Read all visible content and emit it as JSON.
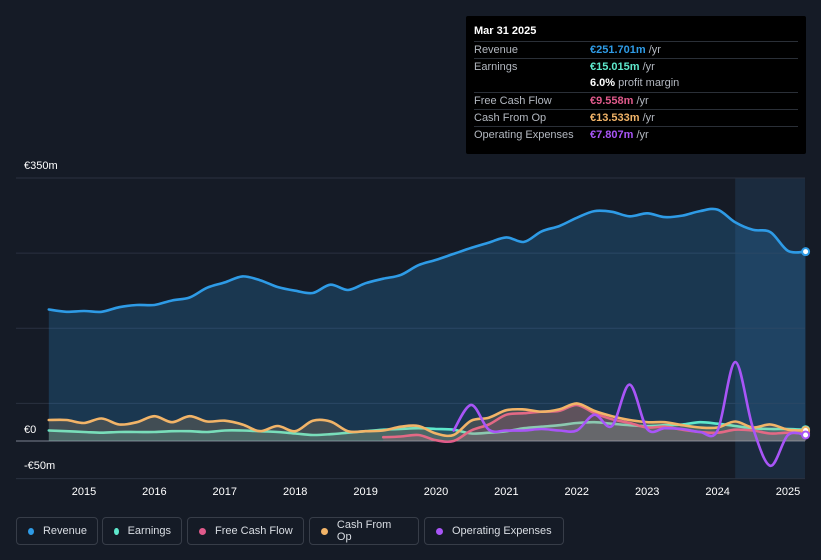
{
  "tooltip": {
    "date": "Mar 31 2025",
    "rows": [
      {
        "label": "Revenue",
        "value": "€251.701m",
        "unit": "/yr",
        "color": "#2e9be6"
      },
      {
        "label": "Earnings",
        "value": "€15.015m",
        "unit": "/yr",
        "color": "#5ee8cc"
      },
      {
        "label": "",
        "value": "6.0%",
        "unit": "profit margin",
        "color": "#ffffff"
      },
      {
        "label": "Free Cash Flow",
        "value": "€9.558m",
        "unit": "/yr",
        "color": "#e05a8b"
      },
      {
        "label": "Cash From Op",
        "value": "€13.533m",
        "unit": "/yr",
        "color": "#f2b468"
      },
      {
        "label": "Operating Expenses",
        "value": "€7.807m",
        "unit": "/yr",
        "color": "#a855f7"
      }
    ]
  },
  "legend": [
    {
      "label": "Revenue",
      "color": "#2e9be6"
    },
    {
      "label": "Earnings",
      "color": "#5ee8cc"
    },
    {
      "label": "Free Cash Flow",
      "color": "#e05a8b"
    },
    {
      "label": "Cash From Op",
      "color": "#f2b468"
    },
    {
      "label": "Operating Expenses",
      "color": "#a855f7"
    }
  ],
  "chart_data": {
    "type": "area",
    "currency": "EUR",
    "ylim": [
      -50,
      350
    ],
    "y_tick_labels": [
      "€350m",
      "€0",
      "-€50m"
    ],
    "x_tick_labels": [
      "2015",
      "2016",
      "2017",
      "2018",
      "2019",
      "2020",
      "2021",
      "2022",
      "2023",
      "2024",
      "2025"
    ],
    "forecast_shade_from": 2024.25,
    "series": [
      {
        "name": "Revenue",
        "color": "#2e9be6",
        "fill": true,
        "x": [
          2014.5,
          2014.75,
          2015.0,
          2015.25,
          2015.5,
          2015.75,
          2016.0,
          2016.25,
          2016.5,
          2016.75,
          2017.0,
          2017.25,
          2017.5,
          2017.75,
          2018.0,
          2018.25,
          2018.5,
          2018.75,
          2019.0,
          2019.25,
          2019.5,
          2019.75,
          2020.0,
          2020.25,
          2020.5,
          2020.75,
          2021.0,
          2021.25,
          2021.5,
          2021.75,
          2022.0,
          2022.25,
          2022.5,
          2022.75,
          2023.0,
          2023.25,
          2023.5,
          2023.75,
          2024.0,
          2024.25,
          2024.5,
          2024.75,
          2025.0,
          2025.25
        ],
        "values": [
          175,
          172,
          173,
          172,
          178,
          181,
          181,
          187,
          191,
          204,
          211,
          219,
          214,
          205,
          200,
          197,
          208,
          201,
          210,
          216,
          221,
          234,
          241,
          249,
          257,
          264,
          271,
          265,
          279,
          286,
          297,
          306,
          305,
          299,
          303,
          298,
          300,
          306,
          308,
          291,
          281,
          278,
          253,
          252
        ]
      },
      {
        "name": "Earnings",
        "color": "#5ee8cc",
        "fill": true,
        "x": [
          2014.5,
          2014.75,
          2015.0,
          2015.25,
          2015.5,
          2015.75,
          2016.0,
          2016.25,
          2016.5,
          2016.75,
          2017.0,
          2017.25,
          2017.5,
          2017.75,
          2018.0,
          2018.25,
          2018.5,
          2018.75,
          2019.0,
          2019.25,
          2019.5,
          2019.75,
          2020.0,
          2020.25,
          2020.5,
          2020.75,
          2021.0,
          2021.25,
          2021.5,
          2021.75,
          2022.0,
          2022.25,
          2022.5,
          2022.75,
          2023.0,
          2023.25,
          2023.5,
          2023.75,
          2024.0,
          2024.25,
          2024.5,
          2024.75,
          2025.0,
          2025.25
        ],
        "values": [
          14,
          13,
          12,
          11,
          12,
          12,
          12,
          13,
          13,
          12,
          14,
          14,
          13,
          12,
          10,
          8,
          9,
          11,
          13,
          15,
          16,
          17,
          16,
          15,
          10,
          11,
          13,
          17,
          19,
          21,
          24,
          25,
          23,
          21,
          20,
          21,
          22,
          25,
          23,
          20,
          17,
          16,
          16,
          15
        ]
      },
      {
        "name": "Free Cash Flow",
        "color": "#e05a8b",
        "fill": true,
        "x": [
          2019.25,
          2019.5,
          2019.75,
          2020.0,
          2020.25,
          2020.5,
          2020.75,
          2021.0,
          2021.25,
          2021.5,
          2021.75,
          2022.0,
          2022.25,
          2022.5,
          2022.75,
          2023.0,
          2023.25,
          2023.5,
          2023.75,
          2024.0,
          2024.25,
          2024.5,
          2024.75,
          2025.0,
          2025.25
        ],
        "values": [
          5,
          6,
          8,
          1,
          0,
          14,
          22,
          35,
          37,
          39,
          40,
          48,
          37,
          29,
          24,
          18,
          19,
          15,
          12,
          11,
          15,
          14,
          10,
          11,
          10
        ]
      },
      {
        "name": "Cash From Op",
        "color": "#f2b468",
        "fill": true,
        "x": [
          2014.5,
          2014.75,
          2015.0,
          2015.25,
          2015.5,
          2015.75,
          2016.0,
          2016.25,
          2016.5,
          2016.75,
          2017.0,
          2017.25,
          2017.5,
          2017.75,
          2018.0,
          2018.25,
          2018.5,
          2018.75,
          2019.0,
          2019.25,
          2019.5,
          2019.75,
          2020.0,
          2020.25,
          2020.5,
          2020.75,
          2021.0,
          2021.25,
          2021.5,
          2021.75,
          2022.0,
          2022.25,
          2022.5,
          2022.75,
          2023.0,
          2023.25,
          2023.5,
          2023.75,
          2024.0,
          2024.25,
          2024.5,
          2024.75,
          2025.0,
          2025.25
        ],
        "values": [
          28,
          28,
          24,
          30,
          22,
          25,
          33,
          25,
          33,
          26,
          27,
          22,
          13,
          20,
          13,
          27,
          26,
          13,
          13,
          14,
          19,
          20,
          10,
          8,
          27,
          31,
          41,
          42,
          39,
          42,
          50,
          40,
          33,
          28,
          25,
          25,
          21,
          18,
          18,
          26,
          18,
          22,
          15,
          14
        ]
      },
      {
        "name": "Operating Expenses",
        "color": "#a855f7",
        "fill": false,
        "x": [
          2020.25,
          2020.5,
          2020.75,
          2021.0,
          2021.25,
          2021.5,
          2021.75,
          2022.0,
          2022.25,
          2022.5,
          2022.75,
          2023.0,
          2023.25,
          2023.5,
          2023.75,
          2024.0,
          2024.25,
          2024.5,
          2024.75,
          2025.0,
          2025.25
        ],
        "values": [
          14,
          48,
          15,
          14,
          14,
          16,
          14,
          14,
          35,
          20,
          75,
          16,
          17,
          16,
          12,
          14,
          105,
          18,
          -33,
          8,
          8
        ]
      }
    ]
  }
}
